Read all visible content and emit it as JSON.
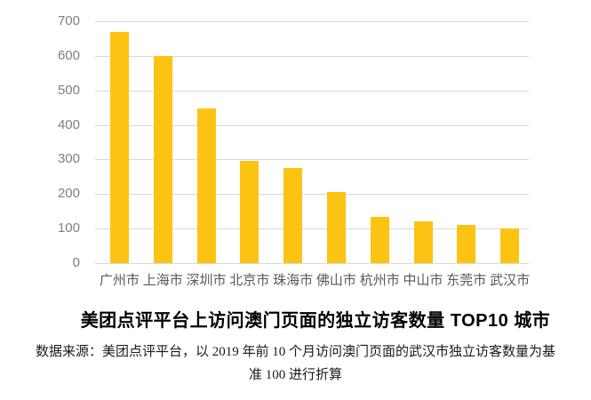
{
  "chart_data": {
    "type": "bar",
    "title": "美团点评平台上访问澳门页面的独立访客数量 TOP10 城市",
    "categories": [
      "广州市",
      "上海市",
      "深圳市",
      "北京市",
      "珠海市",
      "佛山市",
      "杭州市",
      "中山市",
      "东莞市",
      "武汉市"
    ],
    "values": [
      670,
      600,
      448,
      297,
      276,
      205,
      133,
      122,
      110,
      100
    ],
    "xlabel": "",
    "ylabel": "",
    "ylim": [
      0,
      700
    ],
    "yticks": [
      0,
      100,
      200,
      300,
      400,
      500,
      600,
      700
    ],
    "grid": true,
    "legend_position": "none",
    "bar_color": "#fdc313"
  },
  "source_note": {
    "line1": "数据来源：美团点评平台，以 2019 年前 10 个月访问澳门页面的武汉市独立访客数量为基",
    "line2": "准 100 进行折算"
  },
  "colors": {
    "bar": "#fdc313",
    "gridline": "#d9d9d9",
    "y_tick_label": "#7f7f7f",
    "x_tick_label": "#595959",
    "title": "#000000"
  }
}
